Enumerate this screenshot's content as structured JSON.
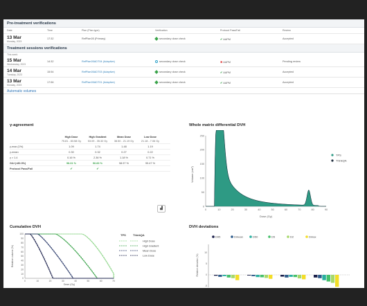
{
  "pretreatment": {
    "title": "Pre-treatment verifications",
    "columns": [
      "Date",
      "Time",
      "Plan (Plan type)",
      "Verification",
      "Protocol Pass/Fail",
      "Review"
    ],
    "rows": [
      {
        "date": "13 Mar",
        "weekday": "Monday, 2023",
        "time": "17:32",
        "plan": "RefPlan05 (Primary)",
        "verification": "secondary dose check",
        "ver_status": "ok",
        "result": "AAPM",
        "result_status": "pass",
        "review": "Accepted"
      }
    ]
  },
  "sessions": {
    "title": "Treatment sessions verifications",
    "sublabel": "This week",
    "rows": [
      {
        "date": "15 Mar",
        "weekday": "Wednesday, 2023",
        "time": "14:32",
        "plan": "RefPlan05ADT04 (Adaptive)",
        "verification": "secondary dose check",
        "ver_status": "pending",
        "result": "AAPM",
        "result_status": "fail",
        "review": "Pending review"
      },
      {
        "date": "14 Mar",
        "weekday": "Tuesday, 2023",
        "time": "15:54",
        "plan": "RefPlan05ADT03 (Adaptive)",
        "verification": "secondary dose check",
        "ver_status": "ok",
        "result": "AAPM",
        "result_status": "pass",
        "review": "Accepted"
      },
      {
        "date": "13 Mar",
        "weekday": "Monday, 2023",
        "time": "17:56",
        "plan": "RefPlan05ADT01 (Adaptive)",
        "verification": "secondary dose check",
        "ver_status": "ok",
        "result": "AAPM",
        "result_status": "pass",
        "review": "Accepted"
      }
    ]
  },
  "auto_volumes": "Automatic volumes",
  "gamma": {
    "title": "γ-agreement",
    "headers": [
      "",
      "High Dose",
      "High Gradient",
      "Mean Dose",
      "Low Dose"
    ],
    "subheaders": [
      "",
      "75.81 - 83.58 Gy",
      "53.09 - 35.32 Gy",
      "38.50 - 21.19 Gy",
      "21.18 - 7.06 Gy"
    ],
    "rows": [
      [
        "γ-max (1%)",
        "1.09",
        "1.74",
        "1.48",
        "1.19"
      ],
      [
        "γ-mean",
        "0.30",
        "0.32",
        "0.27",
        "0.22"
      ],
      [
        "γ > 1.4",
        "0.16 %",
        "2.36 %",
        "1.18 %",
        "0.71 %"
      ],
      [
        "GAI (<80.0%)",
        "98.31 %",
        "96.83 %",
        "98.97 %",
        "99.47 %"
      ]
    ],
    "protocol_label": "Protocol Pass/Fail",
    "protocol_pass": [
      true,
      true,
      false,
      false
    ]
  },
  "whole_dvh": {
    "title": "Whole matrix differential DVH",
    "xlabel": "Dose (Gy)",
    "ylabel": "Volume (cm³)",
    "legend": [
      "TPS",
      "ThinkQA"
    ],
    "colors": {
      "tps": "#2e9a84",
      "thinkqa": "#1a2a3a"
    },
    "xticks": [
      "0",
      "10",
      "20",
      "30",
      "40",
      "50",
      "60",
      "70",
      "80",
      "90"
    ],
    "yticks": [
      "0",
      "50",
      "100",
      "150",
      "200",
      "250"
    ]
  },
  "cumulative_dvh": {
    "title": "Cumulative DVH",
    "xlabel": "Dose (Gy)",
    "ylabel": "Relative volume (%)",
    "legend_headers": [
      "TPS",
      "ThinkQA"
    ],
    "legend": [
      "High Dose",
      "High Gradient",
      "Mean Dose",
      "Low Dose"
    ],
    "colors": [
      "#8fd68a",
      "#3aa34a",
      "#2b3a6a",
      "#1a1f4a"
    ],
    "xticks": [
      "0",
      "10",
      "20",
      "30",
      "40",
      "50",
      "60",
      "70"
    ],
    "yticks": [
      "0",
      "10",
      "20",
      "30",
      "40",
      "50",
      "60",
      "70",
      "80",
      "90",
      "100"
    ]
  },
  "deviations": {
    "title": "DVH deviations",
    "ylabel": "Relative deviation (%)",
    "legend": [
      "D95",
      "Dmean",
      "D50",
      "D5",
      "D2",
      "Dmax"
    ],
    "colors": [
      "#1a1f4a",
      "#2d5a8a",
      "#2ab0a0",
      "#45c06a",
      "#a6d86a",
      "#f3dd27"
    ],
    "categories": [
      "High Dose",
      "High Gradient",
      "Mean Dose",
      "Low Dose"
    ],
    "yticks": [
      "-10",
      "-5",
      "0",
      "5",
      "10"
    ]
  }
}
